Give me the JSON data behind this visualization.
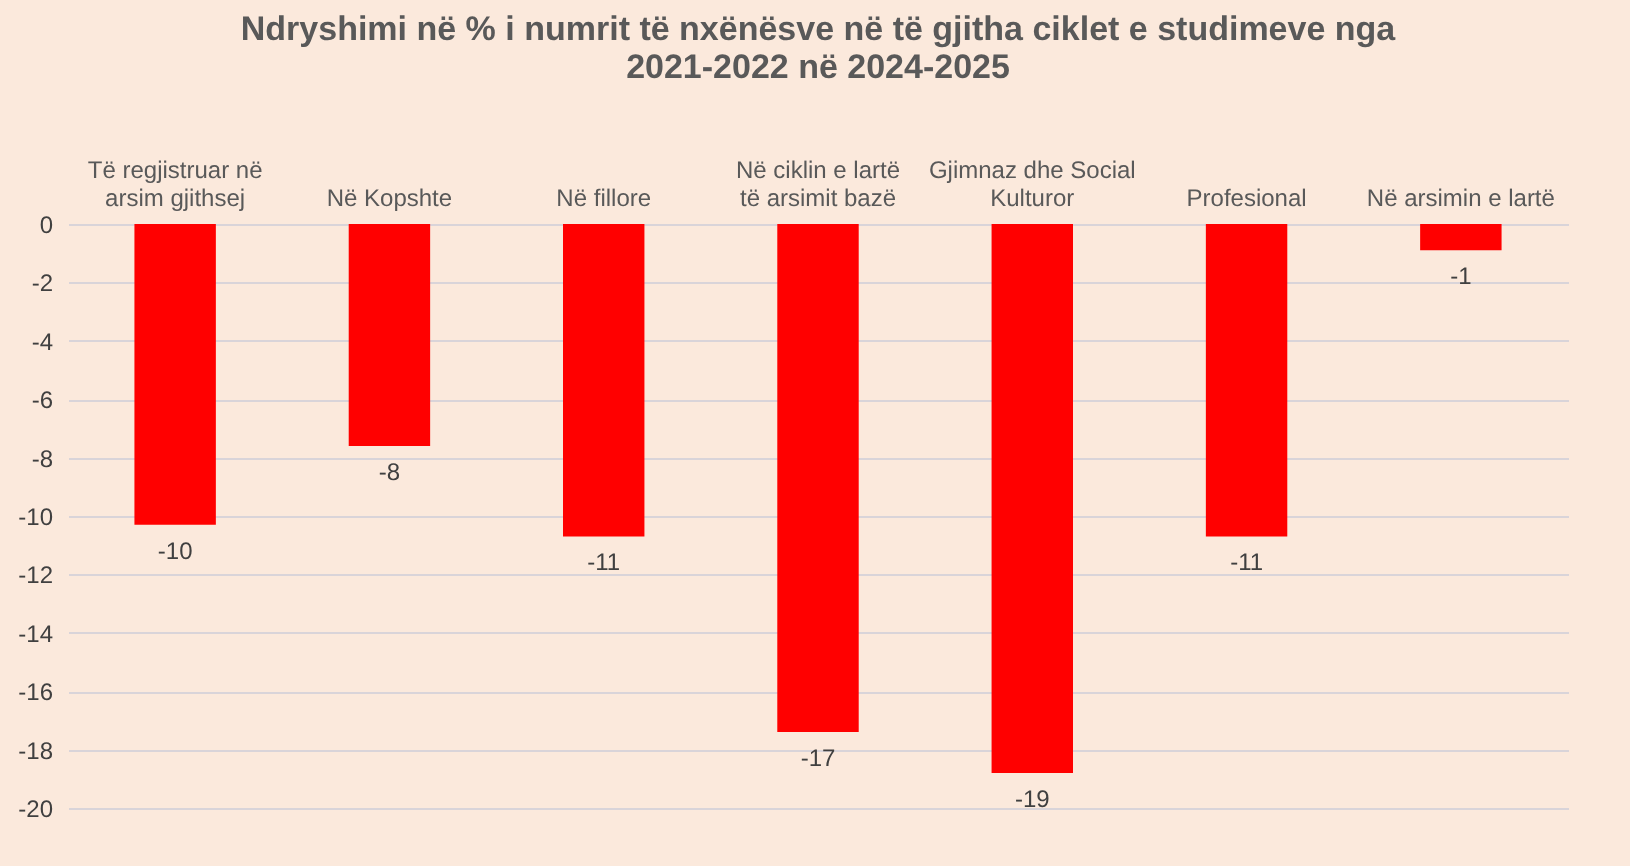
{
  "chart_data": {
    "type": "bar",
    "title": "Ndryshimi në % i numrit të nxënësve në të gjitha ciklet e studimeve nga 2021-2022 në 2024-2025",
    "categories": [
      "Të regjistruar në arsim gjithsej",
      "Në Kopshte",
      "Në fillore",
      "Në ciklin e lartë të arsimit bazë",
      "Gjimnaz dhe Social Kulturor",
      "Profesional",
      "Në arsimin e lartë"
    ],
    "values": [
      -10.3,
      -7.6,
      -10.7,
      -17.4,
      -18.8,
      -10.7,
      -0.9
    ],
    "value_labels": [
      "-10",
      "-8",
      "-11",
      "-17",
      "-19",
      "-11",
      "-1"
    ],
    "color": "#ff0000",
    "ylim": [
      -20,
      0
    ],
    "yticks": [
      0,
      -2,
      -4,
      -6,
      -8,
      -10,
      -12,
      -14,
      -16,
      -18,
      -20
    ],
    "grid": "y"
  }
}
